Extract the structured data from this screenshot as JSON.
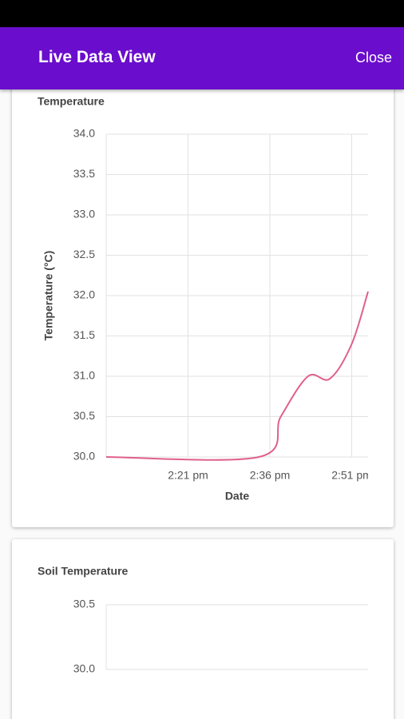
{
  "header": {
    "title": "Live Data View",
    "action": "Close"
  },
  "chart_data": [
    {
      "type": "line",
      "title": "Temperature",
      "x_label": "Date",
      "y_label": "Temperature (°C)",
      "x": [
        "2:06 pm",
        "2:34 pm",
        "2:38 pm",
        "2:43 pm",
        "2:47 pm",
        "2:51 pm",
        "2:54 pm"
      ],
      "series": [
        {
          "color": "#e0608a",
          "values": [
            30,
            30,
            30.5,
            31,
            30.97,
            31.4,
            32.05
          ]
        }
      ],
      "xlim": [
        "2:06 pm",
        "2:54 pm"
      ],
      "xticks": [
        "2:21 pm",
        "2:36 pm",
        "2:51 pm"
      ],
      "ylim": [
        30,
        34
      ],
      "yticks": [
        {
          "value": 30,
          "label": "30.0"
        },
        30.5,
        {
          "value": 31,
          "label": "31.0"
        },
        31.5,
        {
          "value": 32,
          "label": "32.0"
        },
        32.5,
        {
          "value": 33,
          "label": "33.0"
        },
        33.5,
        {
          "value": 34,
          "label": "34.0"
        }
      ],
      "grid": true
    },
    {
      "type": "line",
      "title": "Soil Temperature",
      "ylim": [
        30,
        30.5
      ],
      "yticks": [
        {
          "value": 30,
          "label": "30.0"
        },
        30.5
      ],
      "grid": true
    }
  ]
}
